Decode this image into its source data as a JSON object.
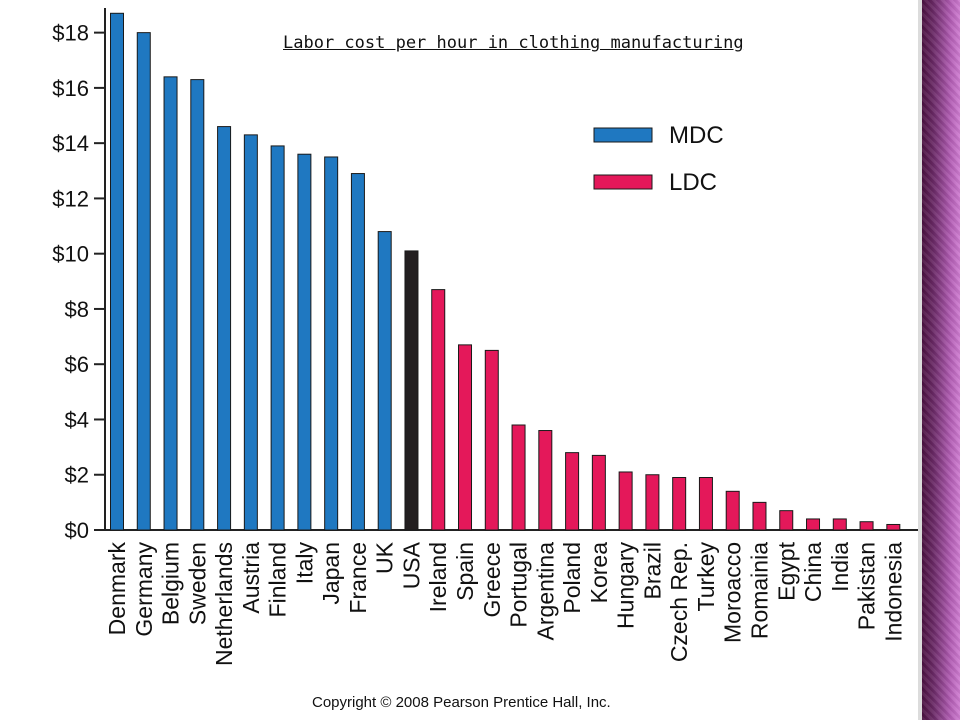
{
  "chart_data": {
    "type": "bar",
    "title": "Labor cost per hour in clothing manufacturing",
    "categories": [
      "Denmark",
      "Germany",
      "Belgium",
      "Sweden",
      "Netherlands",
      "Austria",
      "Finland",
      "Italy",
      "Japan",
      "France",
      "UK",
      "USA",
      "Ireland",
      "Spain",
      "Greece",
      "Portugal",
      "Argentina",
      "Poland",
      "Korea",
      "Hungary",
      "Brazil",
      "Czech Rep.",
      "Turkey",
      "Moroacco",
      "Romainia",
      "Egypt",
      "China",
      "India",
      "Pakistan",
      "Indonesia"
    ],
    "values": [
      18.7,
      18.0,
      16.4,
      16.3,
      14.6,
      14.3,
      13.9,
      13.6,
      13.5,
      12.9,
      10.8,
      10.1,
      8.7,
      6.7,
      6.5,
      3.8,
      3.6,
      2.8,
      2.7,
      2.1,
      2.0,
      1.9,
      1.9,
      1.4,
      1.0,
      0.7,
      0.4,
      0.4,
      0.3,
      0.2
    ],
    "groups": [
      "MDC",
      "MDC",
      "MDC",
      "MDC",
      "MDC",
      "MDC",
      "MDC",
      "MDC",
      "MDC",
      "MDC",
      "MDC",
      "USA",
      "LDC",
      "LDC",
      "LDC",
      "LDC",
      "LDC",
      "LDC",
      "LDC",
      "LDC",
      "LDC",
      "LDC",
      "LDC",
      "LDC",
      "LDC",
      "LDC",
      "LDC",
      "LDC",
      "LDC",
      "LDC"
    ],
    "ylim": [
      0,
      19
    ],
    "yticks": [
      0,
      2,
      4,
      6,
      8,
      10,
      12,
      14,
      16,
      18
    ],
    "ytick_labels": [
      "$0",
      "$2",
      "$4",
      "$6",
      "$8",
      "$10",
      "$12",
      "$14",
      "$16",
      "$18"
    ],
    "xlabel": "",
    "ylabel": "",
    "grid": false,
    "legend": {
      "placement": "top-right",
      "entries": [
        {
          "label": "MDC",
          "color": "#1f78c1"
        },
        {
          "label": "LDC",
          "color": "#e4185a"
        }
      ]
    },
    "colors": {
      "MDC": "#1f78c1",
      "LDC": "#e4185a",
      "USA": "#231f20"
    }
  },
  "footer": {
    "copyright": "Copyright © 2008 Pearson Prentice Hall, Inc."
  }
}
